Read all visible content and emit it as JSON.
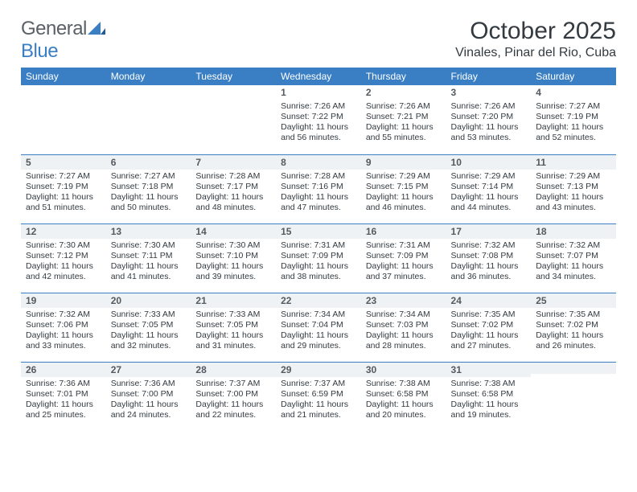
{
  "brand": {
    "part1": "General",
    "part2": "Blue"
  },
  "title": "October 2025",
  "location": "Vinales, Pinar del Rio, Cuba",
  "weekday_header_bg": "#3a7fc4",
  "weekdays": [
    "Sunday",
    "Monday",
    "Tuesday",
    "Wednesday",
    "Thursday",
    "Friday",
    "Saturday"
  ],
  "weeks": [
    {
      "shaded": false,
      "days": [
        null,
        null,
        null,
        {
          "n": "1",
          "sunrise": "7:26 AM",
          "sunset": "7:22 PM",
          "daylight": "11 hours and 56 minutes."
        },
        {
          "n": "2",
          "sunrise": "7:26 AM",
          "sunset": "7:21 PM",
          "daylight": "11 hours and 55 minutes."
        },
        {
          "n": "3",
          "sunrise": "7:26 AM",
          "sunset": "7:20 PM",
          "daylight": "11 hours and 53 minutes."
        },
        {
          "n": "4",
          "sunrise": "7:27 AM",
          "sunset": "7:19 PM",
          "daylight": "11 hours and 52 minutes."
        }
      ]
    },
    {
      "shaded": true,
      "days": [
        {
          "n": "5",
          "sunrise": "7:27 AM",
          "sunset": "7:19 PM",
          "daylight": "11 hours and 51 minutes."
        },
        {
          "n": "6",
          "sunrise": "7:27 AM",
          "sunset": "7:18 PM",
          "daylight": "11 hours and 50 minutes."
        },
        {
          "n": "7",
          "sunrise": "7:28 AM",
          "sunset": "7:17 PM",
          "daylight": "11 hours and 48 minutes."
        },
        {
          "n": "8",
          "sunrise": "7:28 AM",
          "sunset": "7:16 PM",
          "daylight": "11 hours and 47 minutes."
        },
        {
          "n": "9",
          "sunrise": "7:29 AM",
          "sunset": "7:15 PM",
          "daylight": "11 hours and 46 minutes."
        },
        {
          "n": "10",
          "sunrise": "7:29 AM",
          "sunset": "7:14 PM",
          "daylight": "11 hours and 44 minutes."
        },
        {
          "n": "11",
          "sunrise": "7:29 AM",
          "sunset": "7:13 PM",
          "daylight": "11 hours and 43 minutes."
        }
      ]
    },
    {
      "shaded": true,
      "days": [
        {
          "n": "12",
          "sunrise": "7:30 AM",
          "sunset": "7:12 PM",
          "daylight": "11 hours and 42 minutes."
        },
        {
          "n": "13",
          "sunrise": "7:30 AM",
          "sunset": "7:11 PM",
          "daylight": "11 hours and 41 minutes."
        },
        {
          "n": "14",
          "sunrise": "7:30 AM",
          "sunset": "7:10 PM",
          "daylight": "11 hours and 39 minutes."
        },
        {
          "n": "15",
          "sunrise": "7:31 AM",
          "sunset": "7:09 PM",
          "daylight": "11 hours and 38 minutes."
        },
        {
          "n": "16",
          "sunrise": "7:31 AM",
          "sunset": "7:09 PM",
          "daylight": "11 hours and 37 minutes."
        },
        {
          "n": "17",
          "sunrise": "7:32 AM",
          "sunset": "7:08 PM",
          "daylight": "11 hours and 36 minutes."
        },
        {
          "n": "18",
          "sunrise": "7:32 AM",
          "sunset": "7:07 PM",
          "daylight": "11 hours and 34 minutes."
        }
      ]
    },
    {
      "shaded": true,
      "days": [
        {
          "n": "19",
          "sunrise": "7:32 AM",
          "sunset": "7:06 PM",
          "daylight": "11 hours and 33 minutes."
        },
        {
          "n": "20",
          "sunrise": "7:33 AM",
          "sunset": "7:05 PM",
          "daylight": "11 hours and 32 minutes."
        },
        {
          "n": "21",
          "sunrise": "7:33 AM",
          "sunset": "7:05 PM",
          "daylight": "11 hours and 31 minutes."
        },
        {
          "n": "22",
          "sunrise": "7:34 AM",
          "sunset": "7:04 PM",
          "daylight": "11 hours and 29 minutes."
        },
        {
          "n": "23",
          "sunrise": "7:34 AM",
          "sunset": "7:03 PM",
          "daylight": "11 hours and 28 minutes."
        },
        {
          "n": "24",
          "sunrise": "7:35 AM",
          "sunset": "7:02 PM",
          "daylight": "11 hours and 27 minutes."
        },
        {
          "n": "25",
          "sunrise": "7:35 AM",
          "sunset": "7:02 PM",
          "daylight": "11 hours and 26 minutes."
        }
      ]
    },
    {
      "shaded": true,
      "days": [
        {
          "n": "26",
          "sunrise": "7:36 AM",
          "sunset": "7:01 PM",
          "daylight": "11 hours and 25 minutes."
        },
        {
          "n": "27",
          "sunrise": "7:36 AM",
          "sunset": "7:00 PM",
          "daylight": "11 hours and 24 minutes."
        },
        {
          "n": "28",
          "sunrise": "7:37 AM",
          "sunset": "7:00 PM",
          "daylight": "11 hours and 22 minutes."
        },
        {
          "n": "29",
          "sunrise": "7:37 AM",
          "sunset": "6:59 PM",
          "daylight": "11 hours and 21 minutes."
        },
        {
          "n": "30",
          "sunrise": "7:38 AM",
          "sunset": "6:58 PM",
          "daylight": "11 hours and 20 minutes."
        },
        {
          "n": "31",
          "sunrise": "7:38 AM",
          "sunset": "6:58 PM",
          "daylight": "11 hours and 19 minutes."
        },
        null
      ]
    }
  ],
  "labels": {
    "sunrise": "Sunrise:",
    "sunset": "Sunset:",
    "daylight": "Daylight:"
  }
}
